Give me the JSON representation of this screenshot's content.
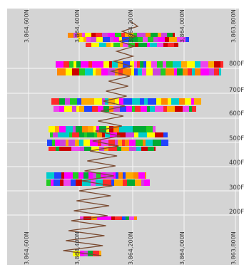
{
  "plot": {
    "background": "#d4d4d4",
    "grid_color": "#f2f2f2",
    "frame_color": "#ffffff",
    "northing_labels_top": [
      "3,864,600N",
      "3,864,400N",
      "3,864,200N",
      "3,864,000N",
      "3,863,800N"
    ],
    "northing_labels_bottom": [
      "3,864,600N",
      "3,864,400N",
      "3,864,200N",
      "3,864,000N",
      "3,863,800N"
    ],
    "elevation_labels": [
      "800F",
      "700F",
      "600F",
      "500F",
      "400F",
      "300F",
      "200F"
    ]
  },
  "legend_colors": [
    "#ff2a2a",
    "#ff00ff",
    "#cc44dd",
    "#00aa33",
    "#ffff00",
    "#22cc22",
    "#ff8800",
    "#2244ff",
    "#00cccc",
    "#cc0000",
    "#ee44ee",
    "#ffaa00"
  ],
  "well_path": {
    "color": "#7a4a30",
    "description": "deviated wellbore trace"
  }
}
